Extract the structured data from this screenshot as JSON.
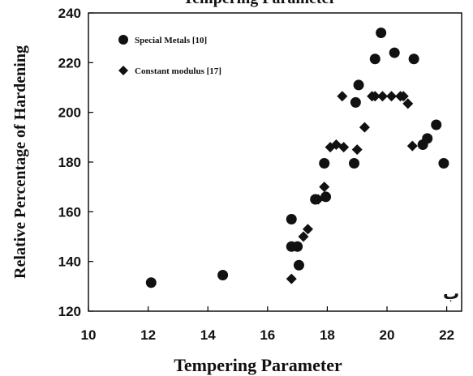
{
  "chart_data": {
    "type": "scatter",
    "title": "Tempering Parameter",
    "xlabel": "Tempering Parameter",
    "ylabel": "Relative Percentage of Hardening",
    "xlim": [
      10,
      22.5
    ],
    "ylim": [
      120,
      240
    ],
    "x_ticks": [
      10,
      12,
      14,
      16,
      18,
      20,
      22
    ],
    "y_ticks": [
      120,
      140,
      160,
      180,
      200,
      220,
      240
    ],
    "grid": false,
    "legend_position": "top-left",
    "panel_label": "ب",
    "series": [
      {
        "name": "Special Metals [10]",
        "marker": "circle",
        "points": [
          [
            12.1,
            131.5
          ],
          [
            14.5,
            134.5
          ],
          [
            16.8,
            157
          ],
          [
            16.8,
            146
          ],
          [
            17.0,
            146
          ],
          [
            17.05,
            138.5
          ],
          [
            17.6,
            165
          ],
          [
            17.9,
            179.5
          ],
          [
            17.95,
            166
          ],
          [
            18.9,
            179.5
          ],
          [
            18.95,
            204
          ],
          [
            19.05,
            211
          ],
          [
            19.6,
            221.5
          ],
          [
            19.8,
            232
          ],
          [
            20.25,
            224
          ],
          [
            20.9,
            221.5
          ],
          [
            21.2,
            187
          ],
          [
            21.35,
            189.5
          ],
          [
            21.65,
            195
          ],
          [
            21.9,
            179.5
          ]
        ]
      },
      {
        "name": "Constant modulus [17]",
        "marker": "diamond",
        "points": [
          [
            16.8,
            133
          ],
          [
            17.0,
            146
          ],
          [
            17.2,
            150
          ],
          [
            17.35,
            153
          ],
          [
            17.7,
            165
          ],
          [
            17.9,
            170
          ],
          [
            18.1,
            186
          ],
          [
            18.3,
            187
          ],
          [
            18.5,
            206.5
          ],
          [
            18.55,
            186
          ],
          [
            19.0,
            185
          ],
          [
            19.25,
            194
          ],
          [
            19.5,
            206.5
          ],
          [
            19.6,
            206.5
          ],
          [
            19.85,
            206.5
          ],
          [
            20.15,
            206.5
          ],
          [
            20.45,
            206.5
          ],
          [
            20.55,
            206.5
          ],
          [
            20.7,
            203.5
          ],
          [
            20.85,
            186.5
          ]
        ]
      }
    ]
  }
}
